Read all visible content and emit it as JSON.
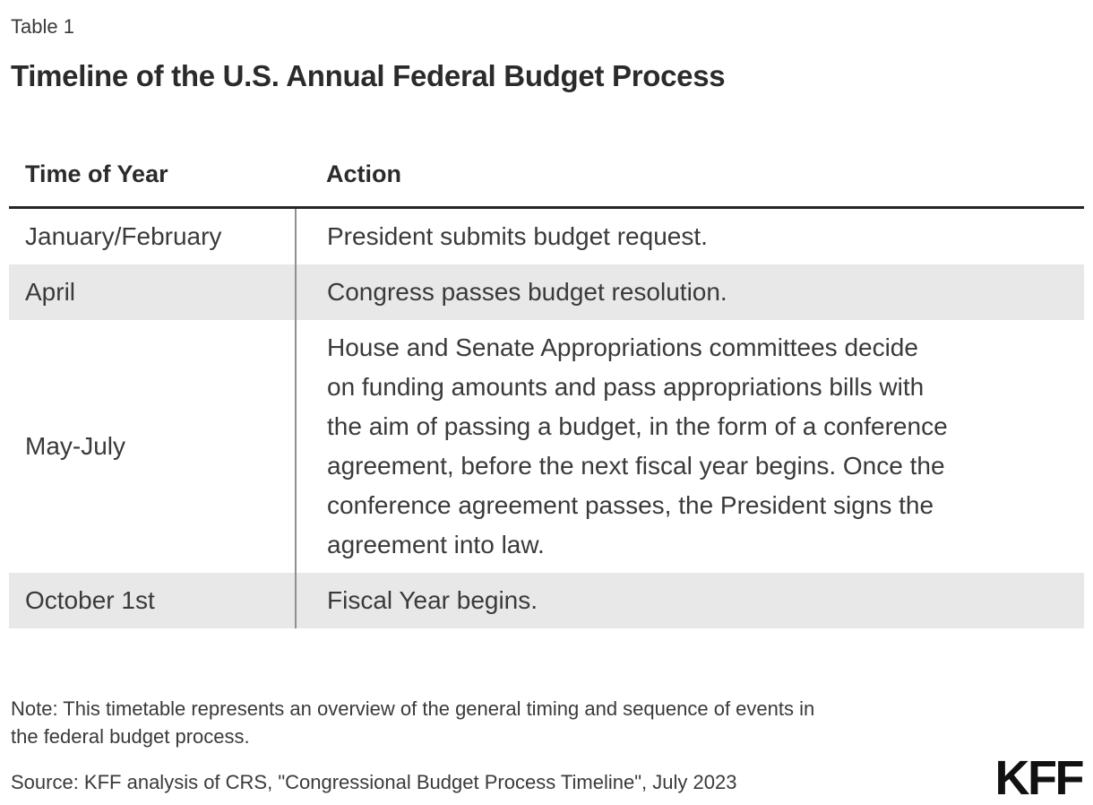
{
  "chart_data": {
    "type": "table",
    "table_label": "Table 1",
    "title": "Timeline of the U.S. Annual Federal Budget Process",
    "columns": [
      "Time of Year",
      "Action"
    ],
    "rows": [
      [
        "January/February",
        "President submits budget request."
      ],
      [
        "April",
        "Congress passes budget resolution."
      ],
      [
        "May-July",
        "House and Senate Appropriations committees decide\non funding amounts and pass appropriations bills with\nthe aim of passing a budget, in the form of a conference\nagreement, before the next fiscal year begins. Once the\nconference agreement passes, the President signs the\nagreement into law."
      ],
      [
        "October 1st",
        "Fiscal Year begins."
      ]
    ],
    "note": "Note: This timetable represents an overview of the general timing and sequence of events in\nthe federal budget process.",
    "source": "Source: KFF analysis of CRS, \"Congressional Budget Process Timeline\", July 2023"
  },
  "branding": {
    "logo_text": "KFF"
  },
  "colors": {
    "background": "#ffffff",
    "text": "#3a3a3a",
    "title_text": "#2b2b2b",
    "row_shade": "#e8e8e8",
    "header_rule": "#262626",
    "column_divider": "#8f8f8f",
    "logo": "#111111"
  }
}
